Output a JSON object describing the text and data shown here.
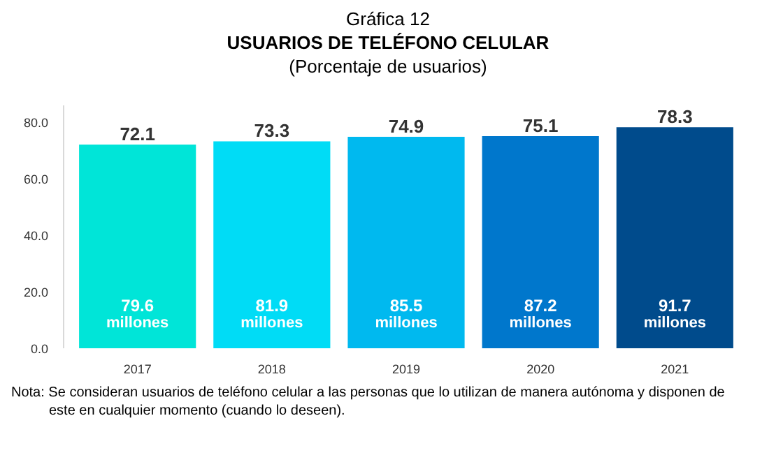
{
  "chart_data": {
    "type": "bar",
    "title": "Gráfica 12",
    "subtitle": "USUARIOS DE TELÉFONO CELULAR\n(Porcentaje de usuarios)",
    "categories": [
      "2017",
      "2018",
      "2019",
      "2020",
      "2021"
    ],
    "values": [
      72.1,
      73.3,
      74.9,
      75.1,
      78.3
    ],
    "colors": [
      "#00e5d8",
      "#00dcf6",
      "#00b9ef",
      "#0077cc",
      "#004b8c"
    ],
    "data_labels": true,
    "ylim": [
      0,
      86
    ],
    "yticks": [
      {
        "value": 0,
        "label": "0.0"
      },
      {
        "value": 20,
        "label": "20.0"
      },
      {
        "value": 40,
        "label": "40.0"
      },
      {
        "value": 60,
        "label": "60.0"
      },
      {
        "value": 80,
        "label": "80.0"
      }
    ],
    "grid": false,
    "annotations": [
      "79.6\nmillones",
      "81.9\nmillones",
      "85.5\nmillones",
      "87.2\nmillones",
      "91.7\nmillones",
      "Nota: Se consideran usuarios de teléfono celular a las personas que lo utilizan de manera autónoma y disponen de este en cualquier momento (cuando lo deseen)."
    ]
  }
}
